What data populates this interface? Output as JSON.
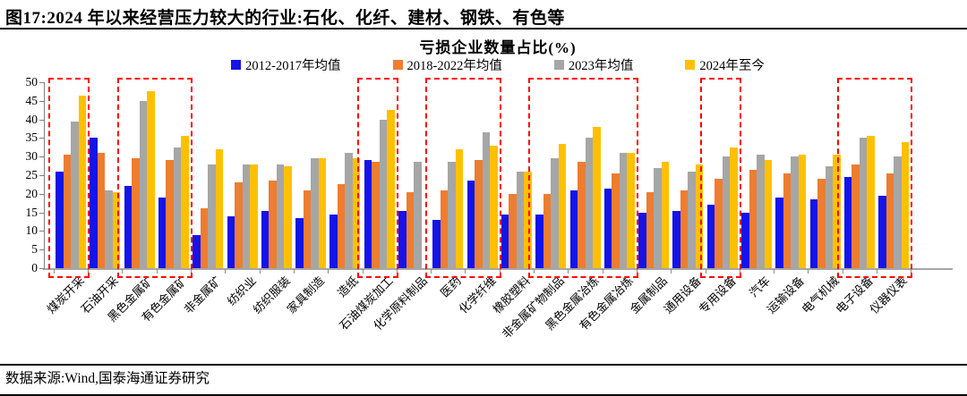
{
  "figure": {
    "title": "图17:2024 年以来经营压力较大的行业:石化、化纤、建材、钢铁、有色等",
    "source": "数据来源:Wind,国泰海通证券研究"
  },
  "chart_data": {
    "type": "bar",
    "title": "亏损企业数量占比(%)",
    "xlabel": "",
    "ylabel": "",
    "ylim": [
      0,
      50
    ],
    "yticks": [
      0,
      5,
      10,
      15,
      20,
      25,
      30,
      35,
      40,
      45,
      50
    ],
    "grid": false,
    "legend_position": "top-center",
    "categories": [
      "煤炭开采",
      "石油开采",
      "黑色金属矿",
      "有色金属矿",
      "非金属矿",
      "纺织业",
      "纺织服装",
      "家具制造",
      "造纸",
      "石油煤炭加工",
      "化学原料制品",
      "医药",
      "化学纤维",
      "橡胶塑料",
      "非金属矿物制品",
      "黑色金属冶炼",
      "有色金属冶炼",
      "金属制品",
      "通用设备",
      "专用设备",
      "汽车",
      "运输设备",
      "电气机械",
      "电子设备",
      "仪器仪表"
    ],
    "series": [
      {
        "name": "2012-2017年均值",
        "color": "#1414E8",
        "values": [
          26,
          35,
          22,
          19,
          9,
          14,
          15.5,
          13.5,
          14.5,
          29,
          15.5,
          13,
          23.5,
          14.5,
          14.5,
          21,
          21.5,
          15,
          15.5,
          17,
          15,
          19,
          18.5,
          24.5,
          19.5
        ]
      },
      {
        "name": "2018-2022年均值",
        "color": "#ED7D31",
        "values": [
          30.5,
          31,
          29.5,
          29,
          16,
          23,
          23.5,
          21,
          22.5,
          28.5,
          20.5,
          21,
          29,
          20,
          20,
          28.5,
          25.5,
          20.5,
          21,
          24,
          26.5,
          25.5,
          24,
          28,
          25.5
        ]
      },
      {
        "name": "2023年均值",
        "color": "#A6A6A6",
        "values": [
          39.5,
          21,
          45,
          32.5,
          28,
          28,
          28,
          29.5,
          31,
          40,
          28.5,
          28.5,
          36.5,
          26,
          29.5,
          35,
          31,
          27,
          26,
          30,
          30.5,
          30,
          27.5,
          35,
          30
        ]
      },
      {
        "name": "2024年至今",
        "color": "#FFC000",
        "values": [
          46.5,
          20.5,
          47.5,
          35.5,
          32,
          28,
          27.5,
          29.5,
          29.5,
          42.5,
          null,
          32,
          33,
          26,
          33.5,
          38,
          31,
          28.5,
          28,
          32.5,
          29,
          30.5,
          30.5,
          35.5,
          34
        ]
      }
    ],
    "highlight_color": "#FF0000",
    "highlight_boxes": [
      {
        "from_category": "煤炭开采",
        "to_category": "煤炭开采"
      },
      {
        "from_category": "黑色金属矿",
        "to_category": "有色金属矿"
      },
      {
        "from_category": "石油煤炭加工",
        "to_category": "石油煤炭加工"
      },
      {
        "from_category": "医药",
        "to_category": "化学纤维"
      },
      {
        "from_category": "非金属矿物制品",
        "to_category": "有色金属冶炼"
      },
      {
        "from_category": "专用设备",
        "to_category": "专用设备"
      },
      {
        "from_category": "电子设备",
        "to_category": "仪器仪表"
      }
    ]
  }
}
